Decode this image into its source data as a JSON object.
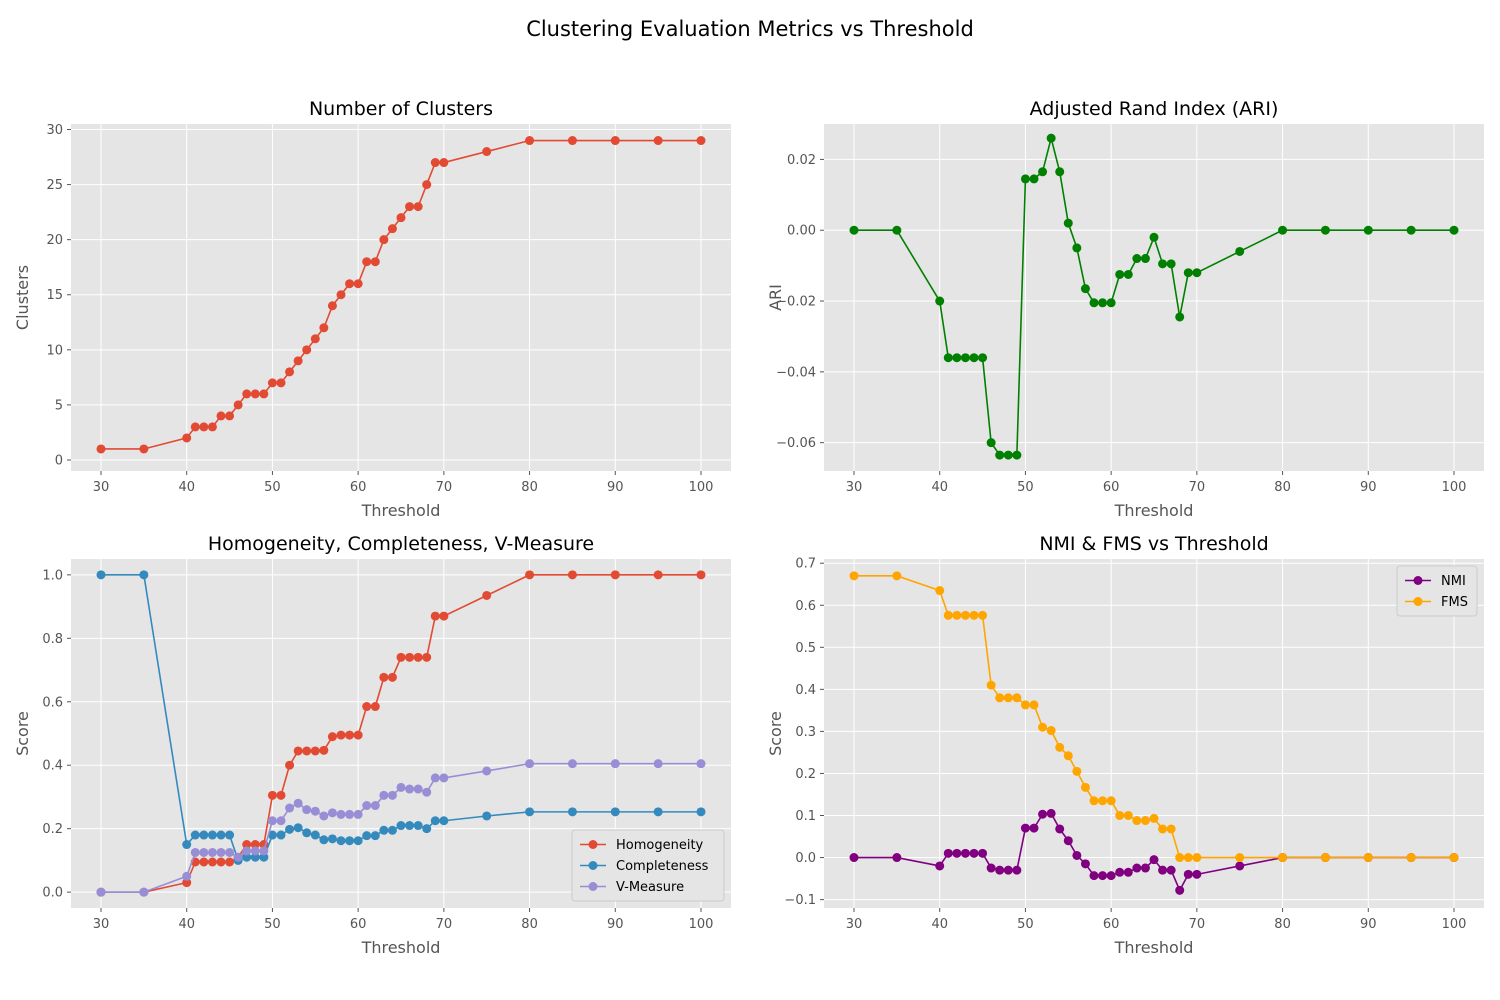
{
  "figure": {
    "title": "Clustering Evaluation Metrics vs Threshold"
  },
  "chart_data": [
    {
      "id": "clusters",
      "type": "line",
      "title": "Number of Clusters",
      "xlabel": "Threshold",
      "ylabel": "Clusters",
      "xlim": [
        26.5,
        103.5
      ],
      "ylim": [
        -1.0,
        30.5
      ],
      "xticks": [
        30,
        40,
        50,
        60,
        70,
        80,
        90,
        100
      ],
      "yticks": [
        0,
        5,
        10,
        15,
        20,
        25,
        30
      ],
      "tick_decimals": 0,
      "x": [
        30,
        35,
        40,
        41,
        42,
        43,
        44,
        45,
        46,
        47,
        48,
        49,
        50,
        51,
        52,
        53,
        54,
        55,
        56,
        57,
        58,
        59,
        60,
        61,
        62,
        63,
        64,
        65,
        66,
        67,
        68,
        69,
        70,
        75,
        80,
        85,
        90,
        95,
        100
      ],
      "series": [
        {
          "name": "",
          "color": "#E24A33",
          "values": [
            1,
            1,
            2,
            3,
            3,
            3,
            4,
            4,
            5,
            6,
            6,
            6,
            7,
            7,
            8,
            9,
            10,
            11,
            12,
            14,
            15,
            16,
            16,
            18,
            18,
            20,
            21,
            22,
            23,
            23,
            25,
            27,
            27,
            28,
            29,
            29,
            29,
            29,
            29
          ]
        }
      ]
    },
    {
      "id": "ari",
      "type": "line",
      "title": "Adjusted Rand Index (ARI)",
      "xlabel": "Threshold",
      "ylabel": "ARI",
      "xlim": [
        26.5,
        103.5
      ],
      "ylim": [
        -0.068,
        0.03
      ],
      "xticks": [
        30,
        40,
        50,
        60,
        70,
        80,
        90,
        100
      ],
      "yticks": [
        -0.06,
        -0.04,
        -0.02,
        0.0,
        0.02
      ],
      "tick_decimals": 2,
      "x": [
        30,
        35,
        40,
        41,
        42,
        43,
        44,
        45,
        46,
        47,
        48,
        49,
        50,
        51,
        52,
        53,
        54,
        55,
        56,
        57,
        58,
        59,
        60,
        61,
        62,
        63,
        64,
        65,
        66,
        67,
        68,
        69,
        70,
        75,
        80,
        85,
        90,
        95,
        100
      ],
      "series": [
        {
          "name": "",
          "color": "#008000",
          "values": [
            0,
            0,
            -0.02,
            -0.036,
            -0.036,
            -0.036,
            -0.036,
            -0.036,
            -0.06,
            -0.0635,
            -0.0635,
            -0.0635,
            0.0145,
            0.0145,
            0.0165,
            0.026,
            0.0165,
            0.002,
            -0.005,
            -0.0165,
            -0.0205,
            -0.0205,
            -0.0205,
            -0.0125,
            -0.0125,
            -0.008,
            -0.008,
            -0.002,
            -0.0095,
            -0.0095,
            -0.0245,
            -0.012,
            -0.012,
            -0.006,
            0,
            0,
            0,
            0,
            0
          ]
        }
      ]
    },
    {
      "id": "hcv",
      "type": "line",
      "title": "Homogeneity, Completeness, V-Measure",
      "xlabel": "Threshold",
      "ylabel": "Score",
      "xlim": [
        26.5,
        103.5
      ],
      "ylim": [
        -0.05,
        1.05
      ],
      "xticks": [
        30,
        40,
        50,
        60,
        70,
        80,
        90,
        100
      ],
      "yticks": [
        0.0,
        0.2,
        0.4,
        0.6,
        0.8,
        1.0
      ],
      "tick_decimals": 1,
      "legend": "lower-right",
      "x": [
        30,
        35,
        40,
        41,
        42,
        43,
        44,
        45,
        46,
        47,
        48,
        49,
        50,
        51,
        52,
        53,
        54,
        55,
        56,
        57,
        58,
        59,
        60,
        61,
        62,
        63,
        64,
        65,
        66,
        67,
        68,
        69,
        70,
        75,
        80,
        85,
        90,
        95,
        100
      ],
      "series": [
        {
          "name": "Homogeneity",
          "color": "#E24A33",
          "values": [
            0,
            0,
            0.03,
            0.095,
            0.095,
            0.095,
            0.095,
            0.095,
            0.11,
            0.15,
            0.15,
            0.15,
            0.305,
            0.305,
            0.4,
            0.445,
            0.445,
            0.445,
            0.447,
            0.49,
            0.495,
            0.495,
            0.495,
            0.585,
            0.585,
            0.677,
            0.677,
            0.74,
            0.74,
            0.74,
            0.74,
            0.87,
            0.87,
            0.935,
            1.0,
            1.0,
            1.0,
            1.0,
            1.0
          ]
        },
        {
          "name": "Completeness",
          "color": "#348ABD",
          "values": [
            1.0,
            1.0,
            0.15,
            0.18,
            0.18,
            0.18,
            0.18,
            0.18,
            0.1,
            0.11,
            0.11,
            0.11,
            0.18,
            0.18,
            0.198,
            0.203,
            0.187,
            0.18,
            0.165,
            0.168,
            0.162,
            0.162,
            0.162,
            0.178,
            0.178,
            0.195,
            0.195,
            0.21,
            0.21,
            0.21,
            0.2,
            0.225,
            0.225,
            0.24,
            0.253,
            0.253,
            0.253,
            0.253,
            0.253
          ]
        },
        {
          "name": "V-Measure",
          "color": "#988ED5",
          "values": [
            0,
            0,
            0.05,
            0.125,
            0.125,
            0.125,
            0.125,
            0.125,
            0.11,
            0.13,
            0.13,
            0.13,
            0.225,
            0.225,
            0.265,
            0.28,
            0.26,
            0.255,
            0.24,
            0.25,
            0.245,
            0.245,
            0.245,
            0.273,
            0.273,
            0.305,
            0.305,
            0.33,
            0.325,
            0.325,
            0.315,
            0.36,
            0.36,
            0.382,
            0.405,
            0.405,
            0.405,
            0.405,
            0.405
          ]
        }
      ]
    },
    {
      "id": "nmifms",
      "type": "line",
      "title": "NMI & FMS vs Threshold",
      "xlabel": "Threshold",
      "ylabel": "Score",
      "xlim": [
        26.5,
        103.5
      ],
      "ylim": [
        -0.12,
        0.71
      ],
      "xticks": [
        30,
        40,
        50,
        60,
        70,
        80,
        90,
        100
      ],
      "yticks": [
        -0.1,
        0.0,
        0.1,
        0.2,
        0.3,
        0.4,
        0.5,
        0.6,
        0.7
      ],
      "tick_decimals": 1,
      "legend": "top-right",
      "x": [
        30,
        35,
        40,
        41,
        42,
        43,
        44,
        45,
        46,
        47,
        48,
        49,
        50,
        51,
        52,
        53,
        54,
        55,
        56,
        57,
        58,
        59,
        60,
        61,
        62,
        63,
        64,
        65,
        66,
        67,
        68,
        69,
        70,
        75,
        80,
        85,
        90,
        95,
        100
      ],
      "series": [
        {
          "name": "NMI",
          "color": "#800080",
          "values": [
            0,
            0,
            -0.02,
            0.01,
            0.01,
            0.01,
            0.01,
            0.01,
            -0.025,
            -0.03,
            -0.03,
            -0.03,
            0.07,
            0.07,
            0.103,
            0.105,
            0.068,
            0.04,
            0.005,
            -0.015,
            -0.043,
            -0.043,
            -0.043,
            -0.035,
            -0.035,
            -0.025,
            -0.025,
            -0.005,
            -0.03,
            -0.03,
            -0.078,
            -0.04,
            -0.04,
            -0.02,
            0,
            0,
            0,
            0,
            0
          ]
        },
        {
          "name": "FMS",
          "color": "#FFA500",
          "values": [
            0.67,
            0.67,
            0.635,
            0.576,
            0.576,
            0.576,
            0.576,
            0.576,
            0.41,
            0.38,
            0.38,
            0.38,
            0.363,
            0.363,
            0.31,
            0.302,
            0.262,
            0.242,
            0.205,
            0.167,
            0.135,
            0.135,
            0.135,
            0.1,
            0.1,
            0.088,
            0.088,
            0.093,
            0.068,
            0.068,
            0,
            0,
            0,
            0,
            0,
            0,
            0,
            0,
            0
          ]
        }
      ]
    }
  ]
}
